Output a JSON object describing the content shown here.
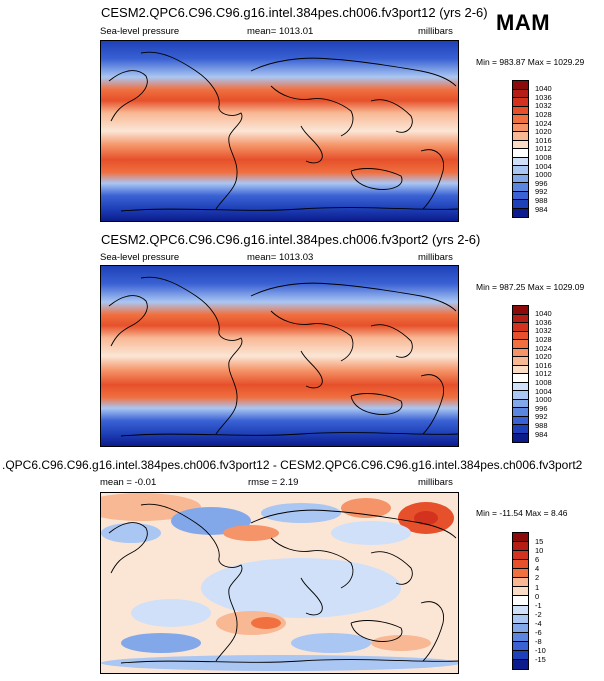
{
  "season": "MAM",
  "panels": [
    {
      "title": "CESM2.QPC6.C96.C96.g16.intel.384pes.ch006.fv3port12 (yrs 2-6)",
      "variable": "Sea-level pressure",
      "stats": "mean= 1013.01",
      "units": "millibars",
      "minmax": "Min = 983.87 Max = 1029.29",
      "colorbar": {
        "labels": [
          "1040",
          "1036",
          "1032",
          "1028",
          "1024",
          "1020",
          "1016",
          "1012",
          "1008",
          "1004",
          "1000",
          "996",
          "992",
          "988",
          "984"
        ],
        "colors": [
          "#8b0a0a",
          "#b41e14",
          "#d2321e",
          "#e6502a",
          "#f07040",
          "#f59468",
          "#f8b894",
          "#fbdcc4",
          "#ffffff",
          "#d0e0f8",
          "#aac6f2",
          "#82a8ea",
          "#5a86e0",
          "#3a62d4",
          "#1e40b8",
          "#0c1c8c"
        ]
      }
    },
    {
      "title": "CESM2.QPC6.C96.C96.g16.intel.384pes.ch006.fv3port2 (yrs 2-6)",
      "variable": "Sea-level pressure",
      "stats": "mean= 1013.03",
      "units": "millibars",
      "minmax": "Min = 987.25 Max = 1029.09",
      "colorbar": {
        "labels": [
          "1040",
          "1036",
          "1032",
          "1028",
          "1024",
          "1020",
          "1016",
          "1012",
          "1008",
          "1004",
          "1000",
          "996",
          "992",
          "988",
          "984"
        ],
        "colors": [
          "#8b0a0a",
          "#b41e14",
          "#d2321e",
          "#e6502a",
          "#f07040",
          "#f59468",
          "#f8b894",
          "#fbdcc4",
          "#ffffff",
          "#d0e0f8",
          "#aac6f2",
          "#82a8ea",
          "#5a86e0",
          "#3a62d4",
          "#1e40b8",
          "#0c1c8c"
        ]
      }
    },
    {
      "title": ".QPC6.C96.C96.g16.intel.384pes.ch006.fv3port12 - CESM2.QPC6.C96.C96.g16.intel.384pes.ch006.fv3port2",
      "mean": "mean = -0.01",
      "rmse": "rmse = 2.19",
      "units": "millibars",
      "minmax": "Min = -11.54 Max = 8.46",
      "colorbar": {
        "labels": [
          "15",
          "10",
          "6",
          "4",
          "2",
          "1",
          "0",
          "-1",
          "-2",
          "-4",
          "-6",
          "-8",
          "-10",
          "-15"
        ],
        "colors": [
          "#8b0a0a",
          "#b41e14",
          "#d2321e",
          "#e6502a",
          "#f07040",
          "#f8b894",
          "#fbdcc4",
          "#ffffff",
          "#d0e0f8",
          "#aac6f2",
          "#82a8ea",
          "#5a86e0",
          "#3a62d4",
          "#1e40b8",
          "#0c1c8c"
        ]
      }
    }
  ]
}
